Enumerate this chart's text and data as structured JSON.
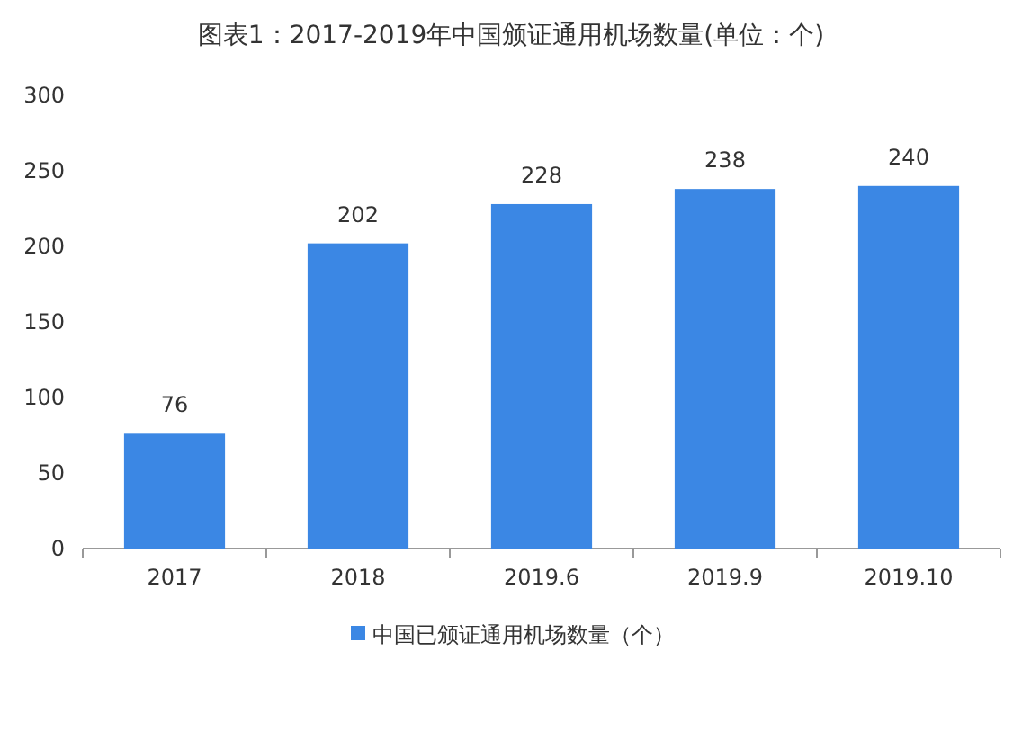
{
  "chart_data": {
    "type": "bar",
    "title": "图表1：2017-2019年中国颁证通用机场数量(单位：个)",
    "categories": [
      "2017",
      "2018",
      "2019.6",
      "2019.9",
      "2019.10"
    ],
    "series": [
      {
        "name": "中国已颁证通用机场数量（个）",
        "color": "#3b87e4",
        "values": [
          76,
          202,
          228,
          238,
          240
        ]
      }
    ],
    "ylim": [
      0,
      300
    ],
    "yticks": [
      0,
      50,
      100,
      150,
      200,
      250,
      300
    ],
    "data_labels": true,
    "legend": "bottom"
  }
}
